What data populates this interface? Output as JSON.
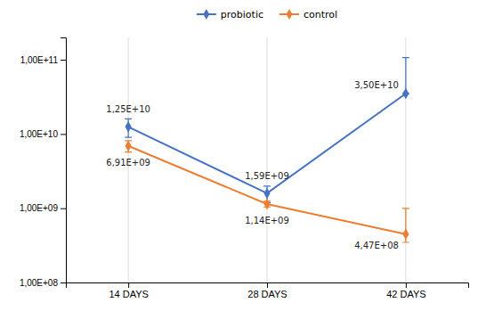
{
  "chart_data": {
    "type": "line",
    "categories": [
      "14 DAYS",
      "28 DAYS",
      "42 DAYS"
    ],
    "series": [
      {
        "name": "probiotic",
        "color": "#4472C4",
        "marker": "diamond",
        "values": [
          12500000000.0,
          1590000000.0,
          35000000000.0
        ],
        "error_low": [
          3500000000.0,
          400000000.0,
          0
        ],
        "error_high": [
          3500000000.0,
          400000000.0,
          72000000000.0
        ],
        "value_labels": [
          "1,25E+10",
          "1,59E+09",
          "3,50E+10"
        ]
      },
      {
        "name": "control",
        "color": "#ED7D31",
        "marker": "diamond",
        "values": [
          6910000000.0,
          1140000000.0,
          447000000.0
        ],
        "error_low": [
          1200000000.0,
          100000000.0,
          100000000.0
        ],
        "error_high": [
          1200000000.0,
          100000000.0,
          550000000.0
        ],
        "value_labels": [
          "6,91E+09",
          "1,14E+09",
          "4,47E+08"
        ]
      }
    ],
    "log": "y",
    "ylim": [
      100000000.0,
      200000000000.0
    ],
    "yticks": [
      {
        "value": 100000000.0,
        "label": "1,00E+08"
      },
      {
        "value": 1000000000.0,
        "label": "1,00E+09"
      },
      {
        "value": 10000000000.0,
        "label": "1,00E+10"
      },
      {
        "value": 100000000000.0,
        "label": "1,00E+11"
      }
    ],
    "grid": true,
    "legend": "top",
    "data_labels": true
  }
}
